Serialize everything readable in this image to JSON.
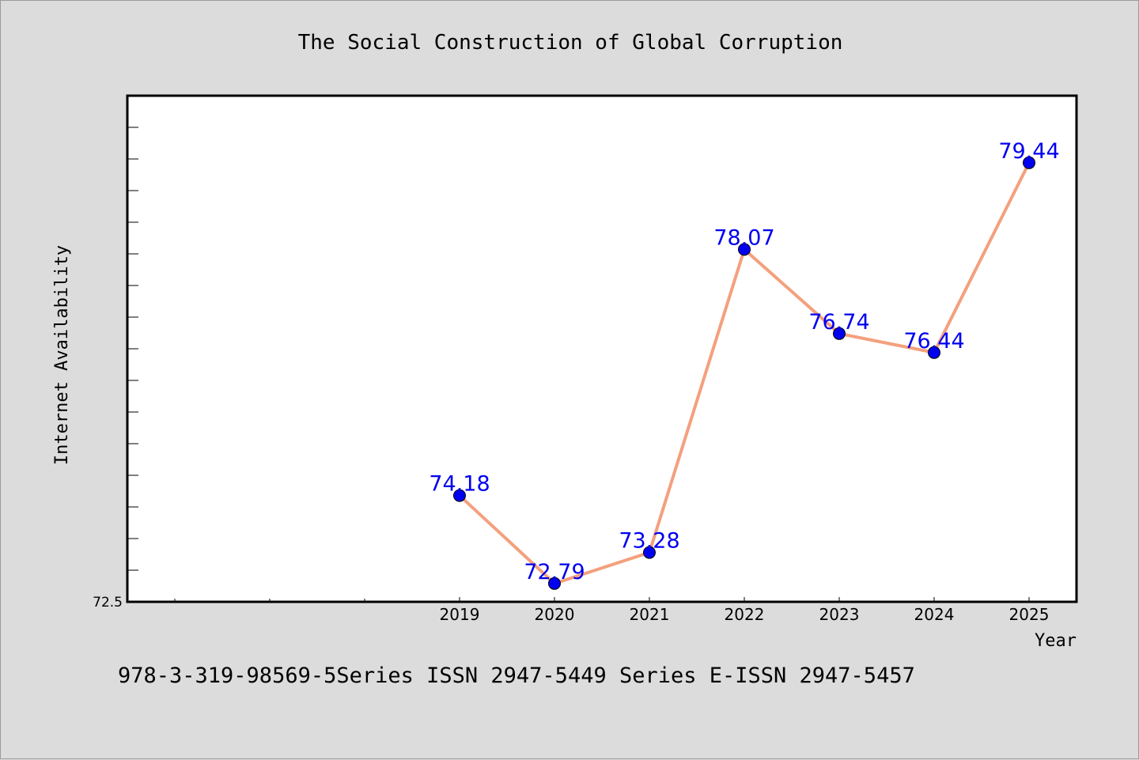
{
  "chart_data": {
    "type": "line",
    "title": "The Social Construction of Global Corruption",
    "xlabel": "Year",
    "ylabel": "Internet Availability",
    "x": [
      "2019",
      "2020",
      "2021",
      "2022",
      "2023",
      "2024",
      "2025"
    ],
    "series": [
      {
        "values": [
          74.18,
          72.79,
          73.28,
          78.07,
          76.74,
          76.44,
          79.44
        ],
        "data_labels": [
          "74.18",
          "72.79",
          "73.28",
          "78.07",
          "76.74",
          "76.44",
          "79.44"
        ],
        "line_color": "#f4a07e",
        "marker_color": "#0000f0"
      }
    ],
    "ytick_labels": [
      "72.5"
    ],
    "ylim": [
      72.5,
      80.5
    ],
    "grid": false,
    "legend": "none",
    "label_color": "#0000f0"
  },
  "footer": "978-3-319-98569-5Series ISSN 2947-5449 Series E-ISSN 2947-5457"
}
